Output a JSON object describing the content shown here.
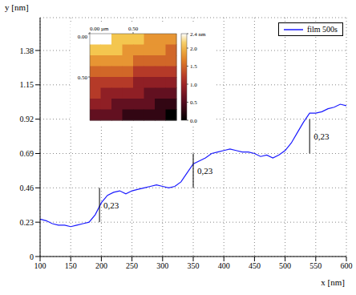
{
  "chart_data": {
    "type": "line",
    "x_label": "x [nm]",
    "y_label": "y [nm]",
    "xlim": [
      100,
      600
    ],
    "ylim": [
      0,
      1.6
    ],
    "xticks": [
      100,
      150,
      200,
      250,
      300,
      350,
      400,
      450,
      500,
      550,
      600
    ],
    "yticks": [
      0,
      0.23,
      0.46,
      0.69,
      0.92,
      1.15,
      1.38
    ],
    "grid": true,
    "legend": "upper right",
    "x": [
      100,
      110,
      120,
      130,
      140,
      150,
      160,
      170,
      180,
      190,
      200,
      210,
      220,
      230,
      240,
      250,
      260,
      270,
      280,
      290,
      300,
      310,
      320,
      330,
      340,
      350,
      360,
      370,
      380,
      390,
      400,
      410,
      420,
      430,
      440,
      450,
      460,
      470,
      480,
      490,
      500,
      510,
      520,
      530,
      540,
      550,
      560,
      570,
      580,
      590,
      600
    ],
    "series": [
      {
        "name": "film 500s",
        "color": "#1a1aff",
        "line_style": "solid",
        "values": [
          0.25,
          0.24,
          0.22,
          0.21,
          0.21,
          0.2,
          0.21,
          0.22,
          0.23,
          0.28,
          0.36,
          0.41,
          0.43,
          0.44,
          0.42,
          0.44,
          0.45,
          0.46,
          0.47,
          0.48,
          0.47,
          0.46,
          0.47,
          0.5,
          0.56,
          0.62,
          0.64,
          0.66,
          0.69,
          0.7,
          0.71,
          0.72,
          0.71,
          0.7,
          0.7,
          0.69,
          0.67,
          0.68,
          0.66,
          0.68,
          0.71,
          0.76,
          0.83,
          0.9,
          0.96,
          0.96,
          0.97,
          0.99,
          1.0,
          1.02,
          1.01
        ]
      }
    ],
    "annotations": [
      {
        "x": 197,
        "y_from": 0.23,
        "y_to": 0.46,
        "label": "0,23"
      },
      {
        "x": 350,
        "y_from": 0.46,
        "y_to": 0.69,
        "label": "0,23"
      },
      {
        "x": 540,
        "y_from": 0.69,
        "y_to": 0.92,
        "label": "0,23"
      }
    ],
    "inset": {
      "type": "heatmap",
      "xlim": [
        0,
        1
      ],
      "ylim": [
        0,
        1
      ],
      "xticks": [
        {
          "value": 0,
          "label": "0.00 µm"
        },
        {
          "value": 0.5,
          "label": "0.50"
        }
      ],
      "yticks": [
        {
          "value": 0,
          "label": "0.00"
        },
        {
          "value": 0.5,
          "label": "0.50"
        }
      ],
      "cells": [
        [
          2.4,
          2.4,
          2.1,
          2.1,
          2.1,
          1.8,
          1.8,
          1.8
        ],
        [
          2.1,
          2.1,
          2.1,
          1.8,
          1.8,
          1.8,
          1.8,
          1.5
        ],
        [
          1.8,
          1.8,
          1.8,
          1.8,
          1.5,
          1.5,
          1.5,
          1.5
        ],
        [
          1.5,
          1.5,
          1.5,
          1.5,
          1.2,
          1.2,
          1.2,
          1.2
        ],
        [
          1.2,
          1.2,
          1.2,
          1.2,
          0.9,
          0.9,
          0.9,
          0.9
        ],
        [
          1.2,
          0.9,
          0.9,
          0.9,
          0.9,
          0.6,
          0.6,
          0.6
        ],
        [
          0.9,
          0.9,
          0.6,
          0.6,
          0.6,
          0.6,
          0.3,
          0.3
        ],
        [
          0.6,
          0.6,
          0.6,
          0.3,
          0.3,
          0.3,
          0.3,
          0.0
        ]
      ],
      "colorbar": {
        "range": [
          0,
          2.4
        ],
        "ticks": [
          {
            "value": 2.4,
            "label": "2.4 nm"
          },
          {
            "value": 2,
            "label": "2.0"
          },
          1.5,
          {
            "value": 1,
            "label": "1.0"
          },
          0.5,
          {
            "value": 0,
            "label": "0.0"
          }
        ]
      }
    }
  }
}
